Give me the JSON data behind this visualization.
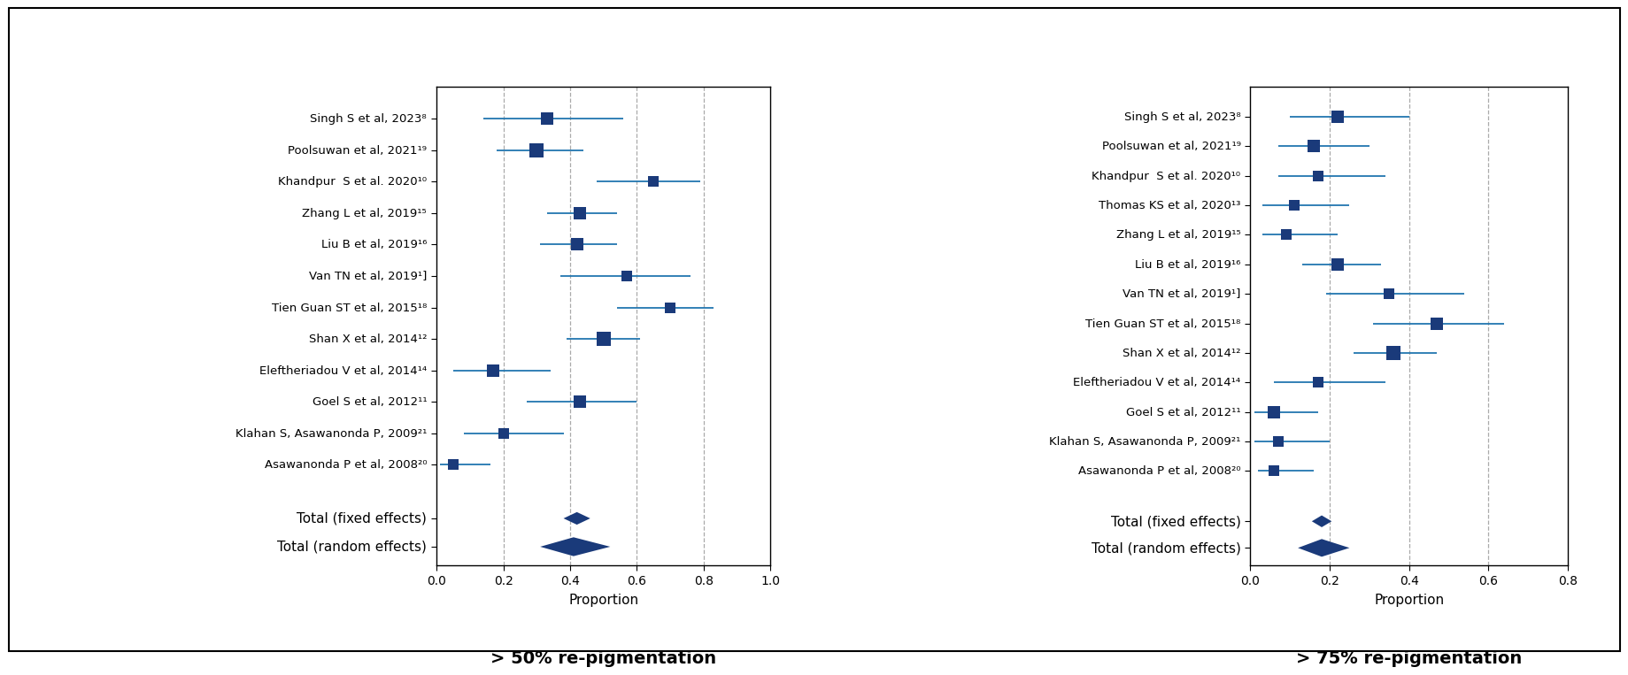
{
  "plot50": {
    "studies": [
      "Singh S et al, 2023⁸",
      "Poolsuwan et al, 2021¹⁹",
      "Khandpur  S et al. 2020¹⁰",
      "Zhang L et al, 2019¹⁵",
      "Liu B et al, 2019¹⁶",
      "Van TN et al, 2019¹]",
      "Tien Guan ST et al, 2015¹⁸",
      "Shan X et al, 2014¹²",
      "Eleftheriadou V et al, 2014¹⁴",
      "Goel S et al, 2012¹¹",
      "Klahan S, Asawanonda P, 2009²¹",
      "Asawanonda P et al, 2008²⁰"
    ],
    "estimates": [
      0.33,
      0.3,
      0.65,
      0.43,
      0.42,
      0.57,
      0.7,
      0.5,
      0.17,
      0.43,
      0.2,
      0.05
    ],
    "ci_low": [
      0.14,
      0.18,
      0.48,
      0.33,
      0.31,
      0.37,
      0.54,
      0.39,
      0.05,
      0.27,
      0.08,
      0.01
    ],
    "ci_high": [
      0.56,
      0.44,
      0.79,
      0.54,
      0.54,
      0.76,
      0.83,
      0.61,
      0.34,
      0.6,
      0.38,
      0.16
    ],
    "sizes": [
      3,
      4,
      2,
      3,
      3,
      2,
      2,
      4,
      3,
      3,
      2,
      2
    ],
    "fixed_est": 0.42,
    "fixed_low": 0.38,
    "fixed_high": 0.46,
    "random_est": 0.41,
    "random_low": 0.31,
    "random_high": 0.52,
    "xlim": [
      0.0,
      1.0
    ],
    "xticks": [
      0.0,
      0.2,
      0.4,
      0.6,
      0.8,
      1.0
    ],
    "xtick_labels": [
      "0.0",
      "0.2",
      "0.4",
      "0.6",
      "0.8",
      "1.0"
    ],
    "xlabel": "Proportion",
    "title": "> 50% re-pigmentation",
    "vlines": [
      0.2,
      0.4,
      0.6,
      0.8
    ]
  },
  "plot75": {
    "studies": [
      "Singh S et al, 2023⁸",
      "Poolsuwan et al, 2021¹⁹",
      "Khandpur  S et al. 2020¹⁰",
      "Thomas KS et al, 2020¹³",
      "Zhang L et al, 2019¹⁵",
      "Liu B et al, 2019¹⁶",
      "Van TN et al, 2019¹]",
      "Tien Guan ST et al, 2015¹⁸",
      "Shan X et al, 2014¹²",
      "Eleftheriadou V et al, 2014¹⁴",
      "Goel S et al, 2012¹¹",
      "Klahan S, Asawanonda P, 2009²¹",
      "Asawanonda P et al, 2008²⁰"
    ],
    "estimates": [
      0.22,
      0.16,
      0.17,
      0.11,
      0.09,
      0.22,
      0.35,
      0.47,
      0.36,
      0.17,
      0.06,
      0.07,
      0.06
    ],
    "ci_low": [
      0.1,
      0.07,
      0.07,
      0.03,
      0.03,
      0.13,
      0.19,
      0.31,
      0.26,
      0.06,
      0.01,
      0.01,
      0.02
    ],
    "ci_high": [
      0.4,
      0.3,
      0.34,
      0.25,
      0.22,
      0.33,
      0.54,
      0.64,
      0.47,
      0.34,
      0.17,
      0.2,
      0.16
    ],
    "sizes": [
      3,
      3,
      2,
      2,
      2,
      3,
      2,
      3,
      4,
      2,
      3,
      2,
      2
    ],
    "fixed_est": 0.18,
    "fixed_low": 0.155,
    "fixed_high": 0.205,
    "random_est": 0.18,
    "random_low": 0.12,
    "random_high": 0.25,
    "xlim": [
      0.0,
      0.8
    ],
    "xticks": [
      0.0,
      0.2,
      0.4,
      0.6,
      0.8
    ],
    "xtick_labels": [
      "0.0",
      "0.2",
      "0.4",
      "0.6",
      "0.8"
    ],
    "xlabel": "Proportion",
    "title": "> 75% re-pigmentation",
    "vlines": [
      0.2,
      0.4,
      0.6
    ]
  },
  "square_color": "#1a3a7a",
  "line_color": "#2276b0",
  "diamond_color": "#1a3a7a",
  "bg_color": "#ffffff",
  "text_color": "#000000",
  "total_labels": [
    "Total (fixed effects)",
    "Total (random effects)"
  ],
  "label_fontsize": 9.5,
  "total_fontsize": 11,
  "title_fontsize": 14
}
